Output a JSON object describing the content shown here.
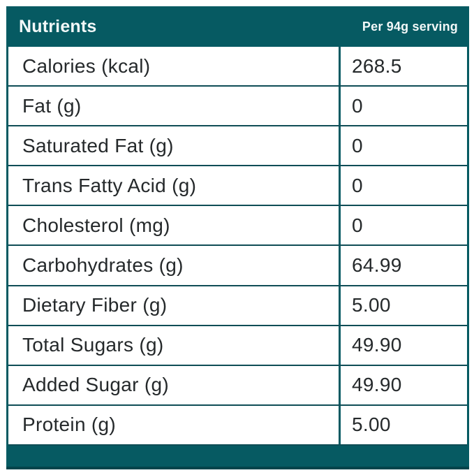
{
  "header": {
    "title": "Nutrients",
    "serving_label": "Per 94g serving"
  },
  "table": {
    "rows": [
      {
        "label": "Calories (kcal)",
        "value": "268.5"
      },
      {
        "label": "Fat (g)",
        "value": "0"
      },
      {
        "label": "Saturated Fat (g)",
        "value": "0"
      },
      {
        "label": "Trans Fatty Acid (g)",
        "value": "0"
      },
      {
        "label": "Cholesterol (mg)",
        "value": "0"
      },
      {
        "label": "Carbohydrates (g)",
        "value": "64.99"
      },
      {
        "label": "Dietary Fiber (g)",
        "value": "5.00"
      },
      {
        "label": "Total Sugars (g)",
        "value": "49.90"
      },
      {
        "label": "Added Sugar (g)",
        "value": "49.90"
      },
      {
        "label": "Protein (g)",
        "value": "5.00"
      }
    ]
  },
  "colors": {
    "teal": "#065a62",
    "separator": "#0f4d56",
    "row_text": "#25292b",
    "header_text": "#f2f8f8"
  },
  "chart_data": {
    "type": "table",
    "title": "Nutrients",
    "columns": [
      "Nutrients",
      "Per 94g serving"
    ],
    "rows": [
      [
        "Calories (kcal)",
        268.5
      ],
      [
        "Fat (g)",
        0
      ],
      [
        "Saturated Fat (g)",
        0
      ],
      [
        "Trans Fatty Acid (g)",
        0
      ],
      [
        "Cholesterol (mg)",
        0
      ],
      [
        "Carbohydrates (g)",
        64.99
      ],
      [
        "Dietary Fiber (g)",
        5.0
      ],
      [
        "Total Sugars (g)",
        49.9
      ],
      [
        "Added Sugar (g)",
        49.9
      ],
      [
        "Protein (g)",
        5.0
      ]
    ]
  }
}
